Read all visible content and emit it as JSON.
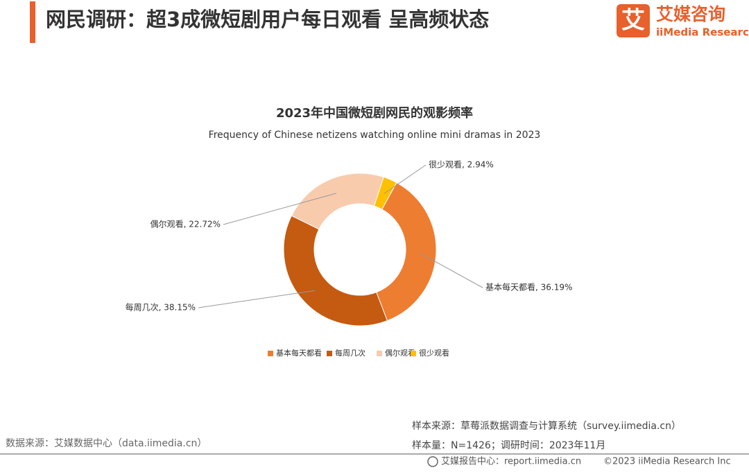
{
  "header": {
    "title": "网民调研：超3成微短剧用户每日观看 呈高频状态",
    "logo_cn": "艾媒咨询",
    "logo_en": "iiMedia Research",
    "logo_icon": "艾"
  },
  "chart_data": {
    "type": "donut",
    "title": "2023年中国微短剧网民的观影频率",
    "subtitle": "Frequency of Chinese netizens watching online mini dramas in 2023",
    "categories": [
      "基本每天都看",
      "每周几次",
      "偶尔观看",
      "很少观看"
    ],
    "values": [
      36.19,
      38.15,
      22.72,
      2.94
    ],
    "value_labels": [
      "基本每天都看, 36.19%",
      "每周几次, 38.15%",
      "偶尔观看, 22.72%",
      "很少观看, 2.94%"
    ],
    "colors": [
      "#ed7d31",
      "#c55a11",
      "#f8cbad",
      "#ffc000"
    ],
    "legend": "bottom"
  },
  "footer": {
    "source": "数据来源：艾媒数据中心（data.iimedia.cn）",
    "sample_source": "样本来源：草莓派数据调查与计算系统（survey.iimedia.cn）",
    "sample_size": "样本量：N=1426；调研时间：2023年11月",
    "report_center": "艾媒报告中心：report.iimedia.cn",
    "copyright": "©2023  iiMedia Research  Inc"
  }
}
